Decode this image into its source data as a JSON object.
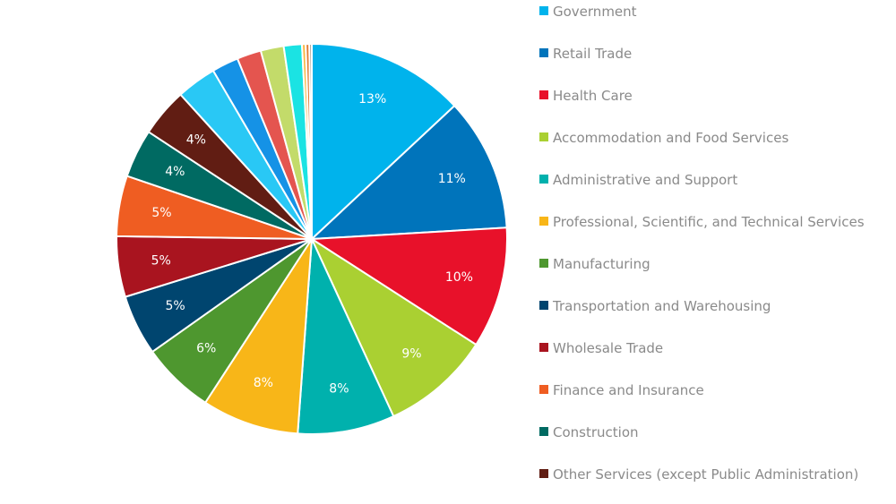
{
  "chart_data": {
    "type": "pie",
    "slices": [
      {
        "name": "Government",
        "value": 13,
        "label": "13%",
        "color": "#00b3ec"
      },
      {
        "name": "Retail Trade",
        "value": 11,
        "label": "11%",
        "color": "#0074bb"
      },
      {
        "name": "Health Care",
        "value": 10,
        "label": "10%",
        "color": "#e8112a"
      },
      {
        "name": "Accommodation and Food Services",
        "value": 9,
        "label": "9%",
        "color": "#aad032"
      },
      {
        "name": "Administrative and Support",
        "value": 8,
        "label": "8%",
        "color": "#00b1ad"
      },
      {
        "name": "Professional, Scientific, and Technical Services",
        "value": 8,
        "label": "8%",
        "color": "#f8b618"
      },
      {
        "name": "Manufacturing",
        "value": 6,
        "label": "6%",
        "color": "#4e972f"
      },
      {
        "name": "Transportation and Warehousing",
        "value": 5,
        "label": "5%",
        "color": "#00456f"
      },
      {
        "name": "Wholesale Trade",
        "value": 5,
        "label": "5%",
        "color": "#a9141f"
      },
      {
        "name": "Finance and Insurance",
        "value": 5,
        "label": "5%",
        "color": "#ef5d22"
      },
      {
        "name": "Construction",
        "value": 4,
        "label": "4%",
        "color": "#006a62"
      },
      {
        "name": "Other Services (except Public Administration)",
        "value": 4,
        "label": "4%",
        "color": "#611d13"
      },
      {
        "name": "",
        "value": 3.3,
        "label": "",
        "color": "#29c8f5"
      },
      {
        "name": "",
        "value": 2.2,
        "label": "",
        "color": "#1592e6"
      },
      {
        "name": "",
        "value": 2.0,
        "label": "",
        "color": "#e4554f"
      },
      {
        "name": "",
        "value": 1.9,
        "label": "",
        "color": "#c3db6a"
      },
      {
        "name": "",
        "value": 1.5,
        "label": "",
        "color": "#1be3e3"
      },
      {
        "name": "",
        "value": 0.3,
        "label": "",
        "color": "#f7b740"
      },
      {
        "name": "",
        "value": 0.3,
        "label": "",
        "color": "#e37c35"
      },
      {
        "name": "",
        "value": 0.2,
        "label": "",
        "color": "#9b8b7a"
      }
    ],
    "legend": [
      {
        "label": "Government",
        "color": "#00b3ec"
      },
      {
        "label": "Retail Trade",
        "color": "#0074bb"
      },
      {
        "label": "Health Care",
        "color": "#e8112a"
      },
      {
        "label": "Accommodation and Food Services",
        "color": "#aad032"
      },
      {
        "label": "Administrative and Support",
        "color": "#00b1ad"
      },
      {
        "label": "Professional, Scientific, and Technical Services",
        "color": "#f8b618"
      },
      {
        "label": "Manufacturing",
        "color": "#4e972f"
      },
      {
        "label": "Transportation and Warehousing",
        "color": "#00456f"
      },
      {
        "label": "Wholesale Trade",
        "color": "#a9141f"
      },
      {
        "label": "Finance and Insurance",
        "color": "#ef5d22"
      },
      {
        "label": "Construction",
        "color": "#006a62"
      },
      {
        "label": "Other Services (except Public Administration)",
        "color": "#611d13"
      }
    ],
    "legend_position": "right"
  }
}
